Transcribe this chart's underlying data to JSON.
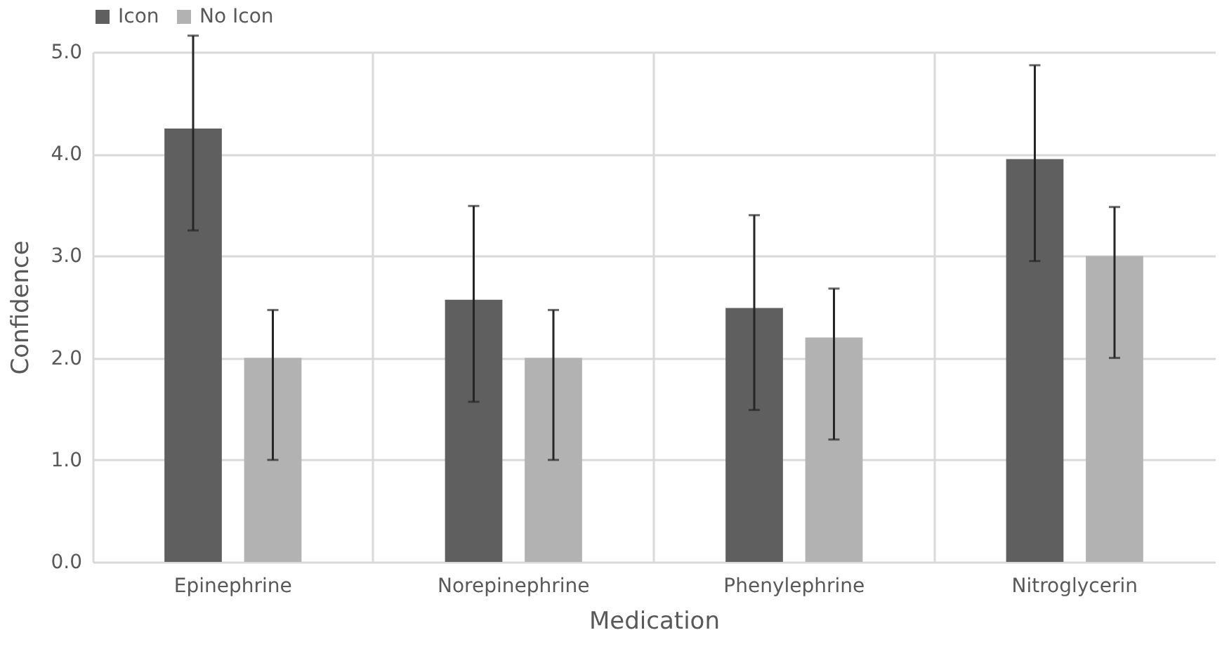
{
  "chart_data": {
    "type": "bar",
    "xlabel": "Medication",
    "ylabel": "Confidence",
    "categories": [
      "Epinephrine",
      "Norepinephrine",
      "Phenylephrine",
      "Nitroglycerin"
    ],
    "series": [
      {
        "name": "Icon",
        "color": "#5f5f5f",
        "values": [
          4.25,
          2.57,
          2.49,
          3.95
        ],
        "errors": [
          [
            3.25,
            5.16
          ],
          [
            1.57,
            3.49
          ],
          [
            1.49,
            3.4
          ],
          [
            2.95,
            4.87
          ]
        ]
      },
      {
        "name": "No Icon",
        "color": "#b2b2b2",
        "values": [
          2.0,
          2.0,
          2.2,
          3.0
        ],
        "errors": [
          [
            1.0,
            2.47
          ],
          [
            1.0,
            2.47
          ],
          [
            1.2,
            2.68
          ],
          [
            2.0,
            3.48
          ]
        ]
      }
    ],
    "ylim": [
      0,
      5.0
    ],
    "yticks": [
      {
        "value": 0,
        "label": "0.0"
      },
      {
        "value": 1,
        "label": "1.0"
      },
      {
        "value": 2,
        "label": "2.0"
      },
      {
        "value": 3,
        "label": "3.0"
      },
      {
        "value": 4,
        "label": "4.0"
      },
      {
        "value": 5,
        "label": "5.0"
      }
    ],
    "grid": true,
    "legend": "top"
  }
}
